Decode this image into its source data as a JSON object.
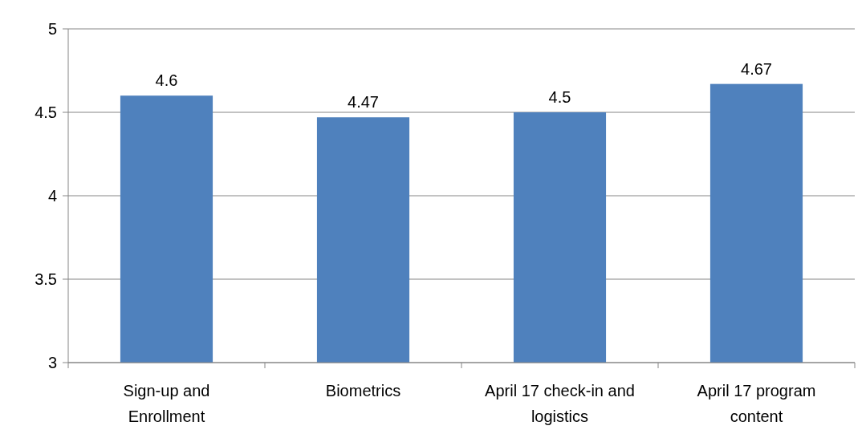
{
  "chart_data": {
    "type": "bar",
    "categories": [
      "Sign-up and Enrollment",
      "Biometrics",
      "April 17 check-in and logistics",
      "April 17 program content"
    ],
    "values": [
      4.6,
      4.47,
      4.5,
      4.67
    ],
    "color": "#4f81bd",
    "ylim": [
      3,
      5
    ],
    "yticks": [
      3,
      3.5,
      4,
      4.5,
      5
    ],
    "grid": "y",
    "data_labels": true
  }
}
